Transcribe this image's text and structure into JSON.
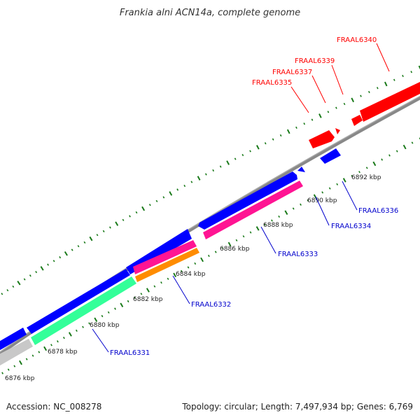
{
  "title": "Frankia alni ACN14a, complete genome",
  "footer": {
    "accession": "Accession: NC_008278",
    "summary": "Topology: circular; Length: 7,497,934 bp; Genes: 6,769"
  },
  "colors": {
    "forward_label": "#ff0000",
    "reverse_label": "#0000cc",
    "backbone": "#888888",
    "tick": "#1a7a1a",
    "cds_forward": "#ff0000",
    "cds_reverse": "#0000ff",
    "pink": "#ff1493",
    "orange": "#ff8c00",
    "green": "#33ff99",
    "gray": "#c8c8c8"
  },
  "kbp_labels": [
    "6876 kbp",
    "6878 kbp",
    "6880 kbp",
    "6882 kbp",
    "6884 kbp",
    "6886 kbp",
    "6888 kbp",
    "6890 kbp",
    "6892 kbp"
  ],
  "genes_forward": [
    "FRAAL6340",
    "FRAAL6339",
    "FRAAL6337",
    "FRAAL6335"
  ],
  "genes_reverse": [
    "FRAAL6336",
    "FRAAL6334",
    "FRAAL6333",
    "FRAAL6332",
    "FRAAL6331"
  ]
}
